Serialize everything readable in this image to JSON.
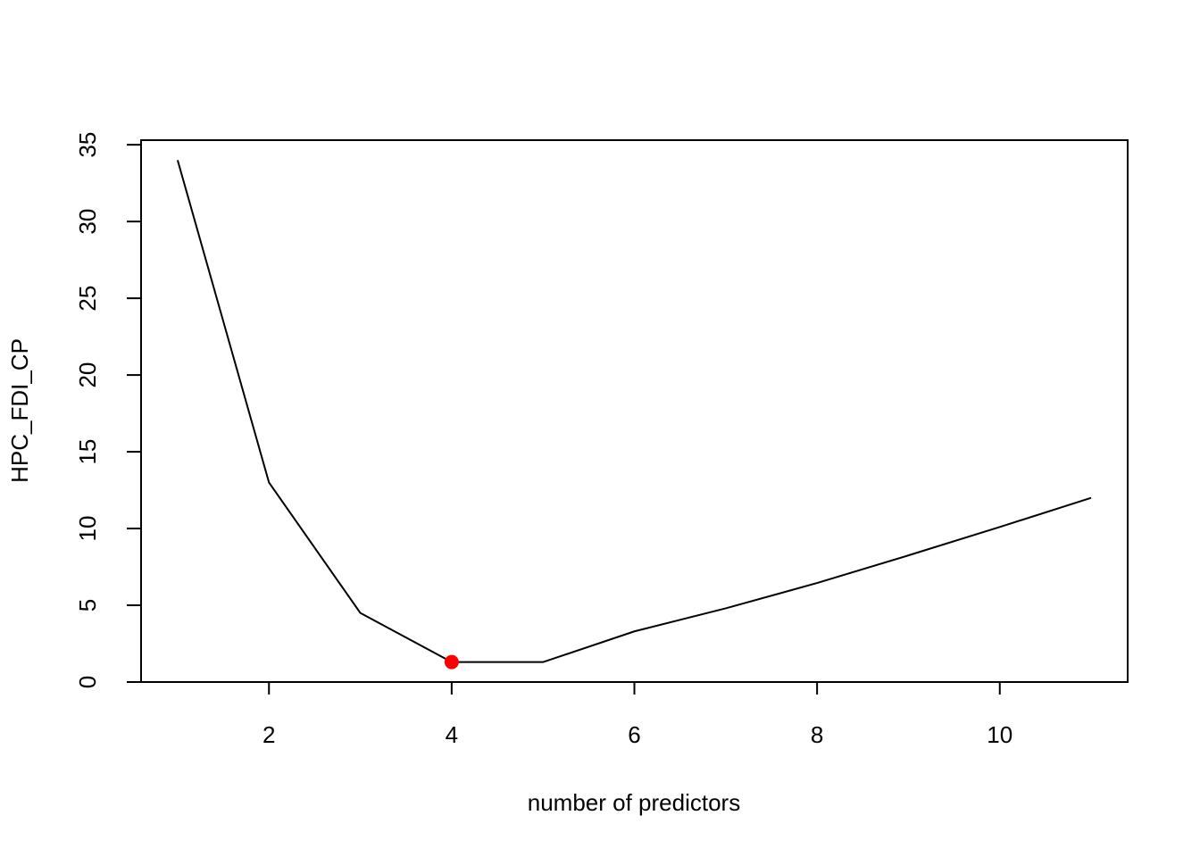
{
  "chart_data": {
    "type": "line",
    "x": [
      1,
      2,
      3,
      4,
      5,
      6,
      7,
      8,
      9,
      10,
      11
    ],
    "values": [
      34,
      13,
      4.5,
      1.3,
      1.3,
      3.3,
      4.8,
      6.45,
      8.25,
      10.1,
      12.0
    ],
    "color": "#000000",
    "highlight": {
      "x": 4,
      "value": 1.3,
      "color": "#ff0000"
    },
    "x_label": "number of predictors",
    "y_label": "HPC_FDI_CP",
    "xlim": [
      0.6,
      11.4
    ],
    "xticks": [
      2,
      4,
      6,
      8,
      10
    ],
    "ylim": [
      0,
      35.3
    ],
    "yticks": [
      0,
      5,
      10,
      15,
      20,
      25,
      30,
      35
    ]
  }
}
